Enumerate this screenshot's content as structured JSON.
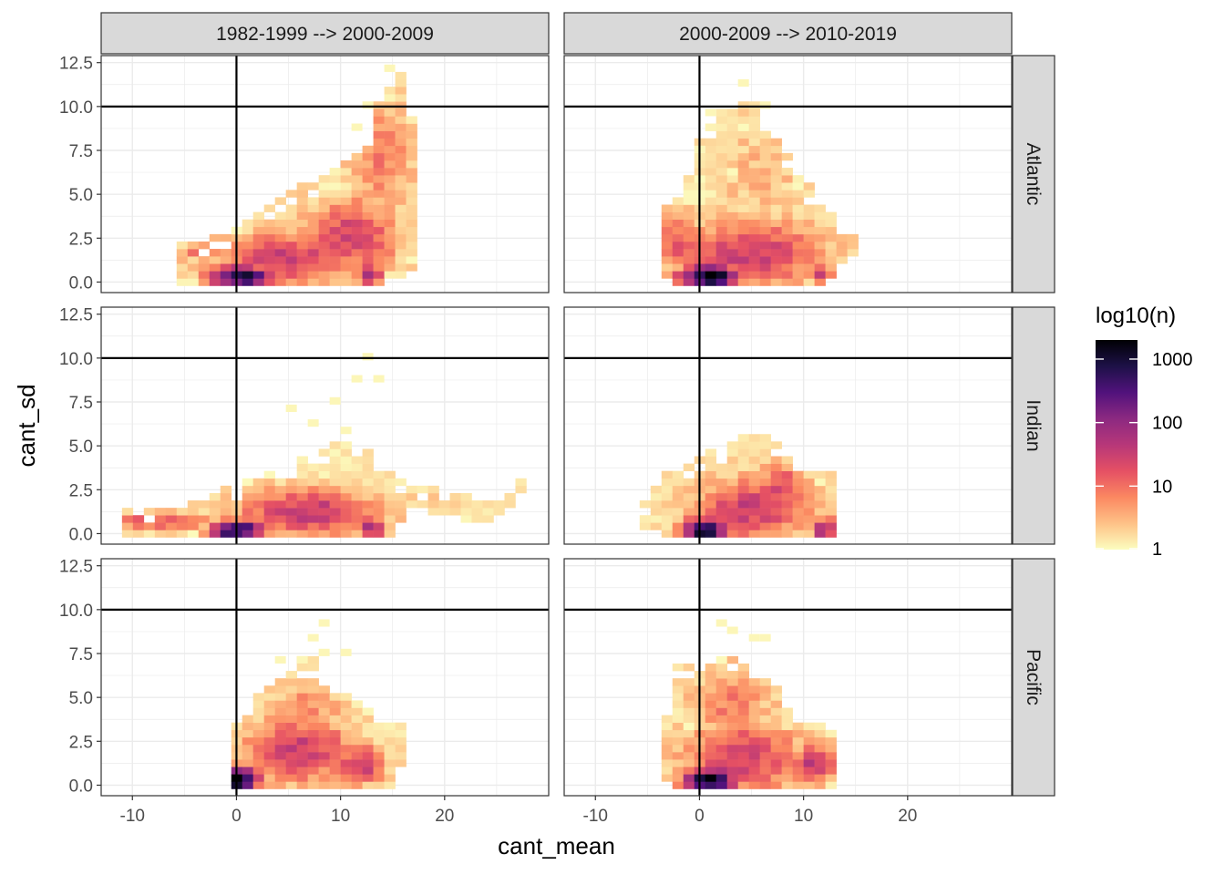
{
  "chart_data": {
    "type": "heatmap",
    "kind": "faceted 2d-bin heatmap",
    "xlabel": "cant_mean",
    "ylabel": "cant_sd",
    "xlim": [
      -13,
      30
    ],
    "ylim": [
      -0.6,
      12.9
    ],
    "x_ticks": [
      -10,
      0,
      10,
      20
    ],
    "x_tick_labels": [
      "-10",
      "0",
      "10",
      "20"
    ],
    "y_ticks": [
      0,
      2.5,
      5,
      7.5,
      10,
      12.5
    ],
    "y_tick_labels": [
      "0.0",
      "2.5",
      "5.0",
      "7.5",
      "10.0",
      "12.5"
    ],
    "reference_lines": {
      "vline_x": 0,
      "hline_y": 10
    },
    "bin_size": {
      "x": 1.05,
      "y": 0.42
    },
    "column_labels": [
      "1982-1999 --> 2000-2009",
      "2000-2009 --> 2010-2019"
    ],
    "row_labels": [
      "Atlantic",
      "Indian",
      "Pacific"
    ],
    "legend": {
      "title": "log10(n)",
      "scale": "log10",
      "breaks": [
        1,
        10,
        100,
        1000
      ],
      "break_labels": [
        "1",
        "10",
        "100",
        "1000"
      ],
      "max": 2000,
      "colors": [
        "#fcfdbf",
        "#fec287",
        "#fb8861",
        "#e55064",
        "#b73779",
        "#8c2981",
        "#51127c",
        "#1d1147",
        "#000004"
      ]
    },
    "panels": [
      {
        "column": "1982-1999 --> 2000-2009",
        "row": "Atlantic",
        "regions": [
          {
            "cx": 0.5,
            "cy": 0.3,
            "sx": 2.2,
            "sy": 0.5,
            "peak": 3.0
          },
          {
            "cx": 5,
            "cy": 1.3,
            "sx": 5,
            "sy": 1.1,
            "peak": 1.5
          },
          {
            "cx": 11,
            "cy": 2.6,
            "sx": 3.5,
            "sy": 1.6,
            "peak": 1.4
          },
          {
            "cx": 13,
            "cy": 0.4,
            "sx": 0.8,
            "sy": 0.5,
            "peak": 1.8
          },
          {
            "cx": 14,
            "cy": 7,
            "sx": 2.2,
            "sy": 2.5,
            "peak": 0.9
          },
          {
            "cx": -4,
            "cy": 1.7,
            "sx": 1.5,
            "sy": 0.4,
            "peak": 0.8
          }
        ],
        "bounds": {
          "xmin": -6,
          "xmax": 17,
          "poly": [
            [
              -6,
              0,
              2.0
            ],
            [
              -2,
              0,
              2.6
            ],
            [
              0,
              0,
              3.2
            ],
            [
              4,
              0,
              4.8
            ],
            [
              8,
              0,
              6.0
            ],
            [
              11,
              0,
              7.0
            ],
            [
              13,
              0,
              9.0
            ],
            [
              14,
              0,
              11.0
            ],
            [
              16,
              0.5,
              12.2
            ],
            [
              17,
              0.6,
              9.0
            ]
          ]
        },
        "outliers": [
          [
            13,
            10.2
          ],
          [
            15,
            12.0
          ],
          [
            12,
            8.8
          ]
        ]
      },
      {
        "column": "2000-2009 --> 2010-2019",
        "row": "Atlantic",
        "regions": [
          {
            "cx": 1,
            "cy": 0.3,
            "sx": 2.2,
            "sy": 0.5,
            "peak": 3.3
          },
          {
            "cx": 5,
            "cy": 1.6,
            "sx": 5,
            "sy": 1.4,
            "peak": 1.5
          },
          {
            "cx": 12,
            "cy": 0.4,
            "sx": 0.6,
            "sy": 0.5,
            "peak": 1.8
          },
          {
            "cx": -2,
            "cy": 2.2,
            "sx": 1.5,
            "sy": 1.3,
            "peak": 1.2
          },
          {
            "cx": 6,
            "cy": 6,
            "sx": 3,
            "sy": 2.5,
            "peak": 0.5
          }
        ],
        "bounds": {
          "xmin": -4,
          "xmax": 15,
          "poly": [
            [
              -4,
              0.5,
              4.4
            ],
            [
              -2,
              0,
              5.0
            ],
            [
              0,
              0,
              8.0
            ],
            [
              3,
              0,
              10.5
            ],
            [
              6,
              0,
              10.0
            ],
            [
              9,
              0,
              6.5
            ],
            [
              12,
              0,
              4.5
            ],
            [
              14,
              1.2,
              3.0
            ],
            [
              15,
              1.5,
              2.8
            ]
          ]
        },
        "outliers": [
          [
            4,
            11.2
          ],
          [
            6,
            10.0
          ],
          [
            1,
            9.5
          ],
          [
            0,
            7.7
          ]
        ]
      },
      {
        "column": "1982-1999 --> 2000-2009",
        "row": "Indian",
        "regions": [
          {
            "cx": 0,
            "cy": 0.2,
            "sx": 1.8,
            "sy": 0.4,
            "peak": 3.2
          },
          {
            "cx": 7,
            "cy": 1.2,
            "sx": 5,
            "sy": 1.0,
            "peak": 1.6
          },
          {
            "cx": 13,
            "cy": 0.3,
            "sx": 0.8,
            "sy": 0.5,
            "peak": 2.0
          },
          {
            "cx": -7,
            "cy": 0.7,
            "sx": 4,
            "sy": 0.4,
            "peak": 1.2
          },
          {
            "cx": 18,
            "cy": 2.2,
            "sx": 3,
            "sy": 0.8,
            "peak": 0.2
          }
        ],
        "bounds": {
          "xmin": -11,
          "xmax": 28,
          "poly": [
            [
              -11,
              0,
              1.3
            ],
            [
              -6,
              0,
              1.4
            ],
            [
              -1,
              0,
              2.6
            ],
            [
              2,
              0,
              3.2
            ],
            [
              6,
              0,
              4.2
            ],
            [
              10,
              0,
              5.2
            ],
            [
              13,
              0,
              4.6
            ],
            [
              15,
              0,
              3.2
            ],
            [
              17,
              1.5,
              3.0
            ],
            [
              20,
              1.2,
              2.4
            ],
            [
              23,
              0.5,
              2.0
            ],
            [
              25,
              1.0,
              1.8
            ],
            [
              28,
              2.5,
              3.4
            ]
          ]
        },
        "outliers": [
          [
            13,
            10.0
          ],
          [
            12,
            8.8
          ],
          [
            14,
            8.8
          ],
          [
            9,
            7.6
          ],
          [
            7,
            6.3
          ],
          [
            10,
            5.8
          ],
          [
            5,
            7.3
          ]
        ]
      },
      {
        "column": "2000-2009 --> 2010-2019",
        "row": "Indian",
        "regions": [
          {
            "cx": 0.5,
            "cy": 0.2,
            "sx": 1.5,
            "sy": 0.5,
            "peak": 3.2
          },
          {
            "cx": 5,
            "cy": 1.4,
            "sx": 4,
            "sy": 1.3,
            "peak": 1.5
          },
          {
            "cx": 12,
            "cy": 0.3,
            "sx": 0.6,
            "sy": 0.5,
            "peak": 2.2
          },
          {
            "cx": 8,
            "cy": 2.6,
            "sx": 1.8,
            "sy": 1.0,
            "peak": 1.3
          }
        ],
        "bounds": {
          "xmin": -6,
          "xmax": 13,
          "poly": [
            [
              -6,
              0.5,
              1.3
            ],
            [
              -3,
              0,
              3.6
            ],
            [
              0,
              0,
              4.2
            ],
            [
              2,
              0,
              5.0
            ],
            [
              5,
              0,
              6.0
            ],
            [
              8,
              0,
              4.8
            ],
            [
              10,
              0,
              3.8
            ],
            [
              12,
              0,
              3.6
            ],
            [
              13,
              0,
              3.4
            ]
          ]
        },
        "outliers": []
      },
      {
        "column": "1982-1999 --> 2000-2009",
        "row": "Pacific",
        "regions": [
          {
            "cx": 0,
            "cy": 0.3,
            "sx": 1.5,
            "sy": 0.6,
            "peak": 3.3
          },
          {
            "cx": 6,
            "cy": 2.0,
            "sx": 4,
            "sy": 1.4,
            "peak": 1.5
          },
          {
            "cx": 12,
            "cy": 1.2,
            "sx": 1.8,
            "sy": 0.8,
            "peak": 1.6
          },
          {
            "cx": 7,
            "cy": 4.5,
            "sx": 2.5,
            "sy": 1.2,
            "peak": 0.8
          }
        ],
        "bounds": {
          "xmin": -1,
          "xmax": 16,
          "poly": [
            [
              -1,
              0,
              1.6
            ],
            [
              0,
              0,
              3.6
            ],
            [
              2,
              0,
              5.0
            ],
            [
              5,
              0,
              6.5
            ],
            [
              7,
              0,
              7.5
            ],
            [
              9,
              0,
              5.6
            ],
            [
              11,
              0,
              5.0
            ],
            [
              13,
              0,
              4.2
            ],
            [
              15,
              0,
              3.4
            ],
            [
              16,
              1.5,
              3.4
            ]
          ]
        },
        "outliers": [
          [
            8,
            9.2
          ],
          [
            7,
            8.5
          ],
          [
            8,
            7.7
          ],
          [
            10,
            7.4
          ],
          [
            6,
            7.3
          ],
          [
            4,
            7.1
          ]
        ]
      },
      {
        "column": "2000-2009 --> 2010-2019",
        "row": "Pacific",
        "regions": [
          {
            "cx": 1,
            "cy": 0.3,
            "sx": 1.8,
            "sy": 0.5,
            "peak": 3.3
          },
          {
            "cx": 4,
            "cy": 1.6,
            "sx": 4,
            "sy": 1.5,
            "peak": 1.5
          },
          {
            "cx": 11,
            "cy": 1.2,
            "sx": 1.5,
            "sy": 0.9,
            "peak": 1.6
          },
          {
            "cx": 3,
            "cy": 4.8,
            "sx": 3,
            "sy": 1.5,
            "peak": 0.9
          }
        ],
        "bounds": {
          "xmin": -4,
          "xmax": 13,
          "poly": [
            [
              -4,
              0.5,
              2.0
            ],
            [
              -2,
              0,
              7.0
            ],
            [
              0,
              0,
              7.0
            ],
            [
              3,
              0,
              7.2
            ],
            [
              5,
              0,
              6.8
            ],
            [
              7,
              0,
              6.0
            ],
            [
              9,
              0,
              4.0
            ],
            [
              11,
              0,
              3.5
            ],
            [
              13,
              0,
              3.2
            ]
          ]
        },
        "outliers": [
          [
            2,
            9.2
          ],
          [
            3,
            8.8
          ],
          [
            5,
            8.5
          ],
          [
            6,
            8.3
          ]
        ]
      }
    ]
  }
}
